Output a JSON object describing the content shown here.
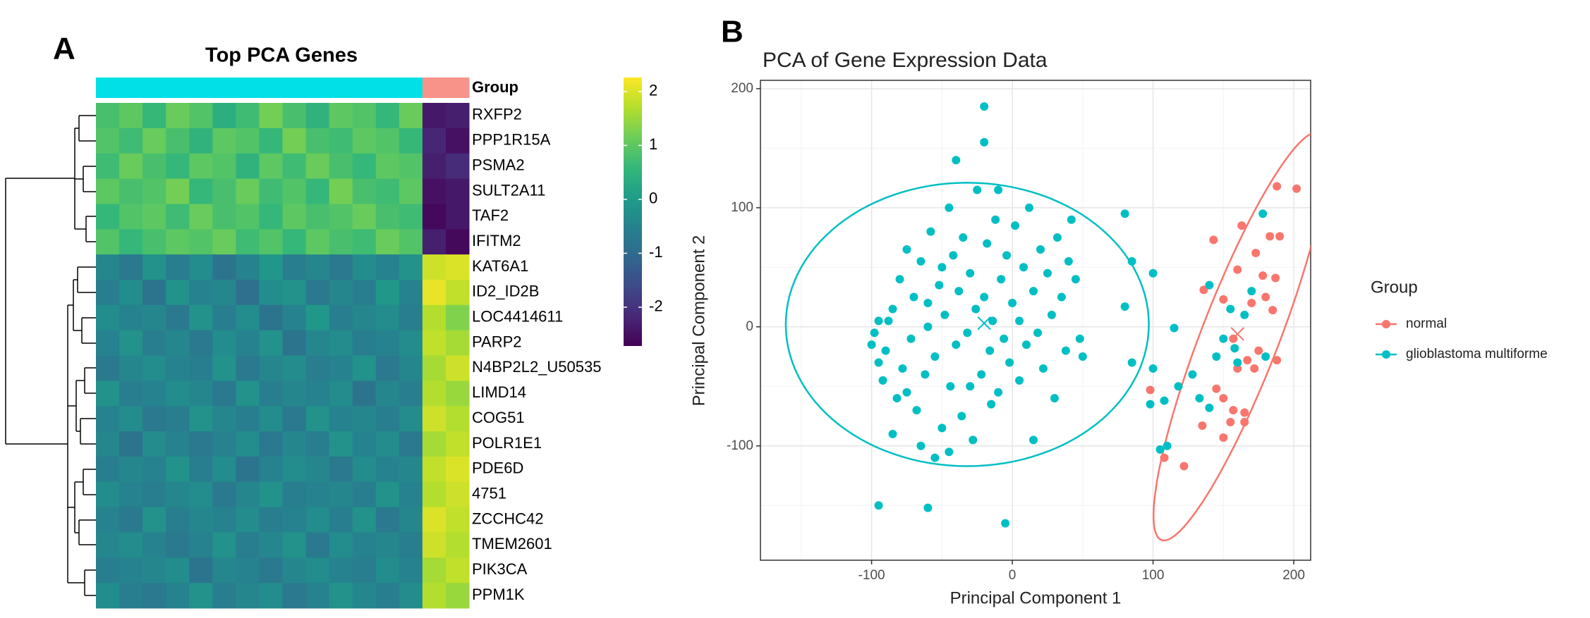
{
  "chart_data": [
    {
      "type": "heatmap",
      "panel_label": "A",
      "title": "Top PCA Genes",
      "annotation_label": "Group",
      "colormap": "viridis",
      "rows": [
        "RXFP2",
        "PPP1R15A",
        "PSMA2",
        "SULT2A11",
        "TAF2",
        "IFITM2",
        "KAT6A1",
        "ID2_ID2B",
        "LOC4414611",
        "PARP2",
        "N4BP2L2_U50535",
        "LIMD14",
        "COG51",
        "POLR1E1",
        "PDE6D",
        "4751",
        "ZCCHC42",
        "TMEM2601",
        "PIK3CA",
        "PPM1K"
      ],
      "column_colors": [
        "#00E0E6",
        "#00E0E6",
        "#00E0E6",
        "#00E0E6",
        "#00E0E6",
        "#00E0E6",
        "#00E0E6",
        "#00E0E6",
        "#00E0E6",
        "#00E0E6",
        "#00E0E6",
        "#00E0E6",
        "#00E0E6",
        "#00E0E6",
        "#F8938A",
        "#F8938A"
      ],
      "values": [
        [
          0.8,
          1.0,
          0.6,
          1.1,
          0.9,
          0.4,
          0.7,
          1.2,
          0.8,
          0.5,
          1.0,
          0.9,
          0.6,
          1.1,
          -2.4,
          -2.3
        ],
        [
          0.9,
          0.7,
          1.1,
          0.8,
          0.5,
          1.0,
          0.9,
          0.6,
          1.2,
          0.8,
          0.7,
          1.0,
          0.9,
          0.6,
          -2.2,
          -2.5
        ],
        [
          0.7,
          1.1,
          0.8,
          0.6,
          1.0,
          0.9,
          0.5,
          1.0,
          0.7,
          1.1,
          0.8,
          0.6,
          1.0,
          0.9,
          -2.3,
          -2.1
        ],
        [
          1.0,
          0.8,
          0.9,
          1.2,
          0.6,
          0.8,
          1.1,
          0.7,
          0.9,
          0.6,
          1.2,
          0.8,
          0.7,
          1.0,
          -2.5,
          -2.4
        ],
        [
          0.6,
          0.9,
          1.0,
          0.7,
          1.1,
          0.8,
          0.9,
          0.6,
          1.0,
          0.8,
          0.9,
          1.1,
          0.8,
          0.7,
          -2.6,
          -2.4
        ],
        [
          0.9,
          0.6,
          0.8,
          1.0,
          0.9,
          1.1,
          0.7,
          0.9,
          0.6,
          1.0,
          0.8,
          0.7,
          1.1,
          0.9,
          -2.3,
          -2.6
        ],
        [
          -0.4,
          -0.7,
          -0.2,
          -0.6,
          -0.3,
          -0.8,
          -0.5,
          -0.1,
          -0.6,
          -0.4,
          -0.7,
          -0.3,
          -0.5,
          -0.2,
          1.9,
          2.0
        ],
        [
          -0.6,
          -0.3,
          -0.8,
          -0.2,
          -0.5,
          -0.4,
          -0.9,
          -0.3,
          -0.2,
          -0.7,
          -0.4,
          -0.6,
          -0.1,
          -0.5,
          2.1,
          1.8
        ],
        [
          -0.3,
          -0.5,
          -0.4,
          -0.7,
          -0.2,
          -0.6,
          -0.3,
          -0.8,
          -0.5,
          -0.1,
          -0.6,
          -0.4,
          -0.3,
          -0.6,
          1.7,
          1.3
        ],
        [
          -0.5,
          -0.2,
          -0.6,
          -0.4,
          -0.7,
          -0.3,
          -0.5,
          -0.2,
          -0.8,
          -0.4,
          -0.3,
          -0.6,
          -0.5,
          -0.3,
          1.8,
          1.6
        ],
        [
          -0.7,
          -0.4,
          -0.3,
          -0.5,
          -0.6,
          -0.2,
          -0.7,
          -0.4,
          -0.3,
          -0.6,
          -0.5,
          -0.2,
          -0.7,
          -0.4,
          1.6,
          1.9
        ],
        [
          -0.2,
          -0.6,
          -0.5,
          -0.3,
          -0.4,
          -0.7,
          -0.2,
          -0.6,
          -0.4,
          -0.5,
          -0.3,
          -0.8,
          -0.4,
          -0.6,
          1.7,
          1.5
        ],
        [
          -0.5,
          -0.3,
          -0.7,
          -0.6,
          -0.2,
          -0.4,
          -0.6,
          -0.3,
          -0.7,
          -0.2,
          -0.5,
          -0.4,
          -0.6,
          -0.3,
          1.9,
          1.7
        ],
        [
          -0.4,
          -0.8,
          -0.3,
          -0.5,
          -0.7,
          -0.5,
          -0.3,
          -0.7,
          -0.4,
          -0.6,
          -0.2,
          -0.5,
          -0.3,
          -0.7,
          1.6,
          1.8
        ],
        [
          -0.6,
          -0.4,
          -0.5,
          -0.2,
          -0.6,
          -0.3,
          -0.8,
          -0.5,
          -0.3,
          -0.4,
          -0.7,
          -0.3,
          -0.5,
          -0.4,
          1.8,
          2.0
        ],
        [
          -0.3,
          -0.5,
          -0.6,
          -0.4,
          -0.3,
          -0.7,
          -0.4,
          -0.2,
          -0.6,
          -0.5,
          -0.4,
          -0.6,
          -0.2,
          -0.5,
          1.7,
          1.9
        ],
        [
          -0.5,
          -0.7,
          -0.2,
          -0.6,
          -0.4,
          -0.5,
          -0.3,
          -0.6,
          -0.5,
          -0.3,
          -0.6,
          -0.2,
          -0.7,
          -0.4,
          2.0,
          1.8
        ],
        [
          -0.4,
          -0.3,
          -0.5,
          -0.7,
          -0.5,
          -0.2,
          -0.6,
          -0.4,
          -0.2,
          -0.7,
          -0.3,
          -0.5,
          -0.4,
          -0.6,
          1.9,
          1.7
        ],
        [
          -0.6,
          -0.5,
          -0.4,
          -0.3,
          -0.8,
          -0.4,
          -0.5,
          -0.7,
          -0.4,
          -0.3,
          -0.5,
          -0.6,
          -0.3,
          -0.5,
          1.6,
          1.8
        ],
        [
          -0.3,
          -0.6,
          -0.7,
          -0.5,
          -0.2,
          -0.6,
          -0.4,
          -0.3,
          -0.7,
          -0.5,
          -0.2,
          -0.4,
          -0.6,
          -0.3,
          1.7,
          1.5
        ]
      ],
      "colorlim": [
        -2.72,
        2.26
      ],
      "colorticks": [
        2,
        1,
        0,
        -1,
        -2
      ]
    },
    {
      "type": "scatter",
      "panel_label": "B",
      "title": "PCA of Gene Expression Data",
      "xlabel": "Principal Component 1",
      "ylabel": "Principal Component 2",
      "xlim": [
        -179,
        212
      ],
      "ylim": [
        -196,
        207
      ],
      "xticks": [
        -100,
        0,
        100,
        200
      ],
      "yticks": [
        -100,
        0,
        100,
        200
      ],
      "xminorticks": [
        -150,
        -50,
        50,
        150
      ],
      "yminorticks": [
        -150,
        -50,
        50,
        150
      ],
      "grid": true,
      "legend_title": "Group",
      "legend_position": "right",
      "series": [
        {
          "name": "normal",
          "color": "#F8766D",
          "x": [
            188,
            202,
            163,
            183,
            190,
            143,
            173,
            178,
            160,
            187,
            136,
            150,
            180,
            170,
            185,
            157,
            175,
            188,
            167,
            160,
            172,
            98,
            145,
            150,
            157,
            165,
            155,
            165,
            135,
            150,
            108,
            122
          ],
          "y": [
            118,
            116,
            85,
            76,
            76,
            73,
            62,
            43,
            48,
            41,
            31,
            23,
            25,
            20,
            14,
            -10,
            -20,
            -28,
            -28,
            -35,
            -35,
            -53,
            -52,
            -60,
            -70,
            -72,
            -80,
            -80,
            -83,
            -93,
            -110,
            -117
          ],
          "ellipse": {
            "center": [
              162,
              -8
            ],
            "radii": [
              180,
              28
            ],
            "angle": 72
          },
          "centroid": [
            160,
            -6
          ]
        },
        {
          "name": "glioblastoma multiforme",
          "color": "#00BFC4",
          "x": [
            -100,
            -98,
            -95,
            -92,
            -90,
            -88,
            -85,
            -82,
            -80,
            -78,
            -75,
            -72,
            -70,
            -68,
            -65,
            -62,
            -60,
            -58,
            -55,
            -52,
            -50,
            -48,
            -45,
            -44,
            -42,
            -40,
            -38,
            -36,
            -35,
            -32,
            -30,
            -28,
            -26,
            -25,
            -22,
            -20,
            -18,
            -16,
            -14,
            -12,
            -10,
            -8,
            -6,
            -4,
            -2,
            0,
            2,
            5,
            8,
            10,
            12,
            15,
            18,
            20,
            22,
            25,
            28,
            30,
            32,
            35,
            38,
            40,
            42,
            45,
            48,
            50,
            -85,
            -65,
            -45,
            -55,
            15,
            -95,
            -60,
            -30,
            -50,
            -15,
            5,
            -75,
            -10,
            -20,
            -20,
            -40,
            -95,
            -60,
            -5,
            80,
            85,
            100,
            80,
            85,
            115,
            100,
            98,
            108,
            110,
            105,
            118,
            128,
            133,
            140,
            145,
            150,
            158,
            165,
            180,
            178,
            140,
            155,
            170,
            160
          ],
          "y": [
            -15,
            -5,
            -30,
            -45,
            -20,
            5,
            15,
            -60,
            40,
            -35,
            65,
            -10,
            25,
            -70,
            55,
            -40,
            0,
            80,
            -25,
            35,
            -85,
            10,
            100,
            -50,
            60,
            -15,
            30,
            -75,
            75,
            -5,
            45,
            -95,
            15,
            115,
            -40,
            25,
            70,
            -20,
            5,
            90,
            -55,
            40,
            -10,
            60,
            -30,
            20,
            85,
            -45,
            50,
            -15,
            100,
            30,
            -5,
            65,
            -35,
            45,
            10,
            -60,
            75,
            25,
            -20,
            55,
            90,
            40,
            -10,
            -25,
            -90,
            -100,
            -105,
            -110,
            -95,
            5,
            20,
            -50,
            50,
            -65,
            5,
            -55,
            115,
            185,
            155,
            140,
            -150,
            -152,
            -165,
            95,
            55,
            45,
            17,
            -30,
            -1,
            -35,
            -65,
            -62,
            -100,
            -103,
            -50,
            -40,
            -60,
            -68,
            -25,
            -10,
            -18,
            10,
            -25,
            95,
            35,
            15,
            30,
            -30
          ],
          "ellipse": {
            "center": [
              -32,
              2
            ],
            "radii": [
              129,
              119
            ],
            "angle": 0
          },
          "centroid": [
            -20,
            3
          ]
        }
      ]
    }
  ]
}
